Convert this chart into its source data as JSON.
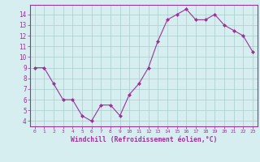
{
  "x": [
    0,
    1,
    2,
    3,
    4,
    5,
    6,
    7,
    8,
    9,
    10,
    11,
    12,
    13,
    14,
    15,
    16,
    17,
    18,
    19,
    20,
    21,
    22,
    23
  ],
  "y": [
    9.0,
    9.0,
    7.5,
    6.0,
    6.0,
    4.5,
    4.0,
    5.5,
    5.5,
    4.5,
    6.5,
    7.5,
    9.0,
    11.5,
    13.5,
    14.0,
    14.5,
    13.5,
    13.5,
    14.0,
    13.0,
    12.5,
    12.0,
    10.5
  ],
  "line_color": "#993399",
  "marker": "D",
  "marker_size": 2,
  "bg_color": "#d6eef0",
  "grid_color": "#aacccc",
  "xlabel": "Windchill (Refroidissement éolien,°C)",
  "xlabel_color": "#993399",
  "tick_color": "#993399",
  "spine_color": "#993399",
  "ylim": [
    3.5,
    14.9
  ],
  "xlim": [
    -0.5,
    23.5
  ],
  "yticks": [
    4,
    5,
    6,
    7,
    8,
    9,
    10,
    11,
    12,
    13,
    14
  ],
  "xticks": [
    0,
    1,
    2,
    3,
    4,
    5,
    6,
    7,
    8,
    9,
    10,
    11,
    12,
    13,
    14,
    15,
    16,
    17,
    18,
    19,
    20,
    21,
    22,
    23
  ]
}
